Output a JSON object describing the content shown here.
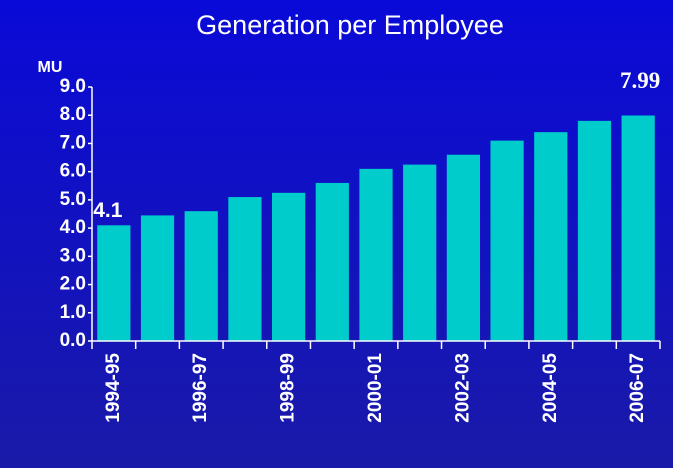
{
  "chart_data": {
    "type": "bar",
    "title": "Generation per Employee",
    "y_label": "MU",
    "categories": [
      "1994-95",
      null,
      "1996-97",
      null,
      "1998-99",
      null,
      "2000-01",
      null,
      "2002-03",
      null,
      "2004-05",
      null,
      "2006-07"
    ],
    "values": [
      4.1,
      4.45,
      4.6,
      5.1,
      5.25,
      5.6,
      6.1,
      6.25,
      6.6,
      7.1,
      7.4,
      7.8,
      7.99
    ],
    "value_labels": [
      "4.1",
      null,
      null,
      null,
      null,
      null,
      null,
      null,
      null,
      null,
      null,
      null,
      "7.99"
    ],
    "color": "#00cccc",
    "ylim": [
      0,
      9
    ],
    "yticks": [
      {
        "value": 0,
        "label": "0.0"
      },
      {
        "value": 1,
        "label": "1.0"
      },
      {
        "value": 2,
        "label": "2.0"
      },
      {
        "value": 3,
        "label": "3.0"
      },
      {
        "value": 4,
        "label": "4.0"
      },
      {
        "value": 5,
        "label": "5.0"
      },
      {
        "value": 6,
        "label": "6.0"
      },
      {
        "value": 7,
        "label": "7.0"
      },
      {
        "value": 8,
        "label": "8.0"
      },
      {
        "value": 9,
        "label": "9.0"
      }
    ],
    "grid": false
  }
}
